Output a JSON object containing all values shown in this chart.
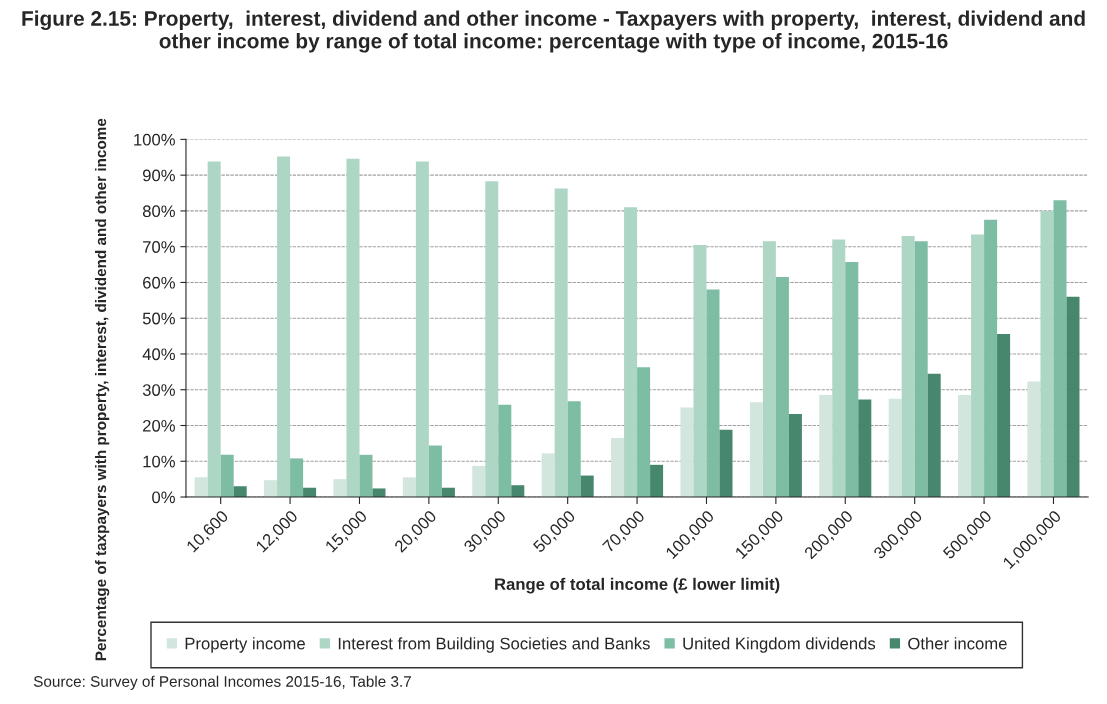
{
  "chart_data": {
    "type": "bar",
    "title": "Figure 2.15: Property,  interest, dividend and other income - Taxpayers with property,  interest, dividend and other income by range of total income: percentage with type of income, 2015-16",
    "xlabel": "Range of total income (£ lower limit)",
    "ylabel": "Percentage of taxpayers with property, interest, dividend and other income",
    "categories": [
      "10,600",
      "12,000",
      "15,000",
      "20,000",
      "30,000",
      "50,000",
      "70,000",
      "100,000",
      "150,000",
      "200,000",
      "300,000",
      "500,000",
      "1,000,000"
    ],
    "series": [
      {
        "name": "Property income",
        "color": "#d2e6dd",
        "values": [
          5.5,
          4.7,
          5,
          5.5,
          8.7,
          12.2,
          16.5,
          25,
          26.5,
          28.5,
          27.5,
          28.5,
          32.3
        ]
      },
      {
        "name": "Interest from Building Societies and Banks",
        "color": "#aed6c5",
        "values": [
          93.8,
          95.2,
          94.6,
          93.8,
          88.3,
          86.3,
          81,
          70.5,
          71.5,
          72,
          73,
          73.4,
          80
        ]
      },
      {
        "name": "United Kingdom dividends",
        "color": "#7dbda3",
        "values": [
          11.8,
          10.8,
          11.8,
          14.4,
          25.8,
          26.8,
          36.3,
          58,
          61.5,
          65.7,
          71.5,
          77.5,
          83
        ]
      },
      {
        "name": "Other income",
        "color": "#46876e",
        "values": [
          3,
          2.6,
          2.4,
          2.6,
          3.3,
          6,
          9,
          18.8,
          23.2,
          27.3,
          34.5,
          45.6,
          56
        ]
      }
    ],
    "ylim": [
      0,
      100
    ],
    "yticks": [
      {
        "value": 0,
        "label": "0%"
      },
      {
        "value": 10,
        "label": "10%"
      },
      {
        "value": 20,
        "label": "20%"
      },
      {
        "value": 30,
        "label": "30%"
      },
      {
        "value": 40,
        "label": "40%"
      },
      {
        "value": 50,
        "label": "50%"
      },
      {
        "value": 60,
        "label": "60%"
      },
      {
        "value": 70,
        "label": "70%"
      },
      {
        "value": 80,
        "label": "80%"
      },
      {
        "value": 90,
        "label": "90%"
      },
      {
        "value": 100,
        "label": "100%"
      }
    ],
    "grid": "y",
    "legend": "bottom",
    "annotations": [
      "Source: Survey of Personal Incomes 2015-16, Table 3.7"
    ]
  }
}
